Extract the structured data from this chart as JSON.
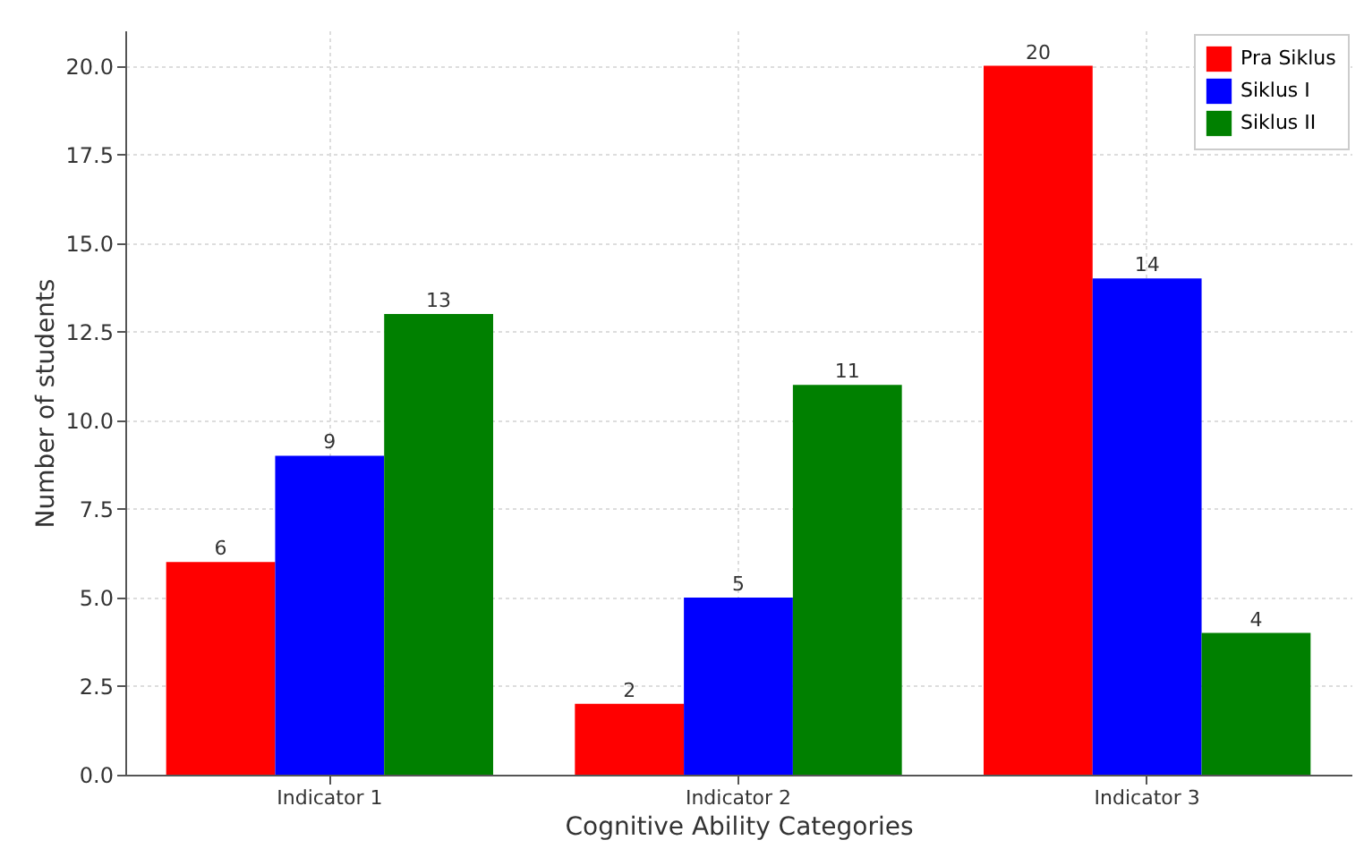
{
  "chart_data": {
    "type": "bar",
    "xlabel": "Cognitive Ability Categories",
    "ylabel": "Number of students",
    "categories": [
      "Indicator 1",
      "Indicator 2",
      "Indicator 3"
    ],
    "series": [
      {
        "name": "Pra Siklus",
        "color": "#ff0000",
        "values": [
          6,
          2,
          20
        ]
      },
      {
        "name": "Siklus I",
        "color": "#0000ff",
        "values": [
          9,
          5,
          14
        ]
      },
      {
        "name": "Siklus II",
        "color": "#008000",
        "values": [
          13,
          11,
          4
        ]
      }
    ],
    "ylim": [
      0,
      21
    ],
    "yticks": [
      {
        "value": 0,
        "label": "0.0"
      },
      {
        "value": 2.5,
        "label": "2.5"
      },
      {
        "value": 5,
        "label": "5.0"
      },
      {
        "value": 7.5,
        "label": "7.5"
      },
      {
        "value": 10,
        "label": "10.0"
      },
      {
        "value": 12.5,
        "label": "12.5"
      },
      {
        "value": 15,
        "label": "15.0"
      },
      {
        "value": 17.5,
        "label": "17.5"
      },
      {
        "value": 20,
        "label": "20.0"
      }
    ],
    "grid": true,
    "legend": "top right",
    "data_labels": true
  }
}
